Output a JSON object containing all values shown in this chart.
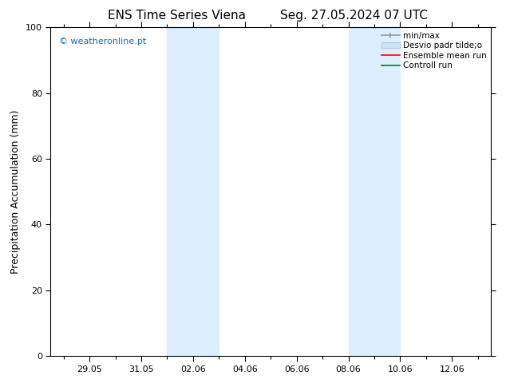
{
  "title_left": "ENS Time Series Viena",
  "title_right": "Seg. 27.05.2024 07 UTC",
  "ylabel": "Precipitation Accumulation (mm)",
  "watermark": "© weatheronline.pt",
  "watermark_color": "#1a6abf",
  "ylim": [
    0,
    100
  ],
  "yticks": [
    0,
    20,
    40,
    60,
    80,
    100
  ],
  "xlim_start": 27.5,
  "xlim_end": 44.5,
  "xtick_labels": [
    "29.05",
    "31.05",
    "02.06",
    "04.06",
    "06.06",
    "08.06",
    "10.06",
    "12.06"
  ],
  "xtick_positions": [
    29.0,
    31.0,
    33.0,
    35.0,
    37.0,
    39.0,
    41.0,
    43.0
  ],
  "minor_xtick_step": 1.0,
  "shaded_bands": [
    {
      "x_start": 32.0,
      "x_end": 34.0
    },
    {
      "x_start": 39.0,
      "x_end": 41.0
    }
  ],
  "shade_color": "#ddeeff",
  "background_color": "#ffffff",
  "title_fontsize": 11,
  "tick_fontsize": 8,
  "label_fontsize": 9,
  "watermark_fontsize": 8,
  "legend_fontsize": 7.5,
  "legend_label_minmax": "min/max",
  "legend_label_desvio": "Desvio padr tilde;o",
  "legend_label_ensemble": "Ensemble mean run",
  "legend_label_control": "Controll run",
  "legend_color_minmax": "#999999",
  "legend_color_desvio_face": "#cce5f5",
  "legend_color_desvio_edge": "#aaccdd",
  "legend_color_ensemble": "red",
  "legend_color_control": "green"
}
